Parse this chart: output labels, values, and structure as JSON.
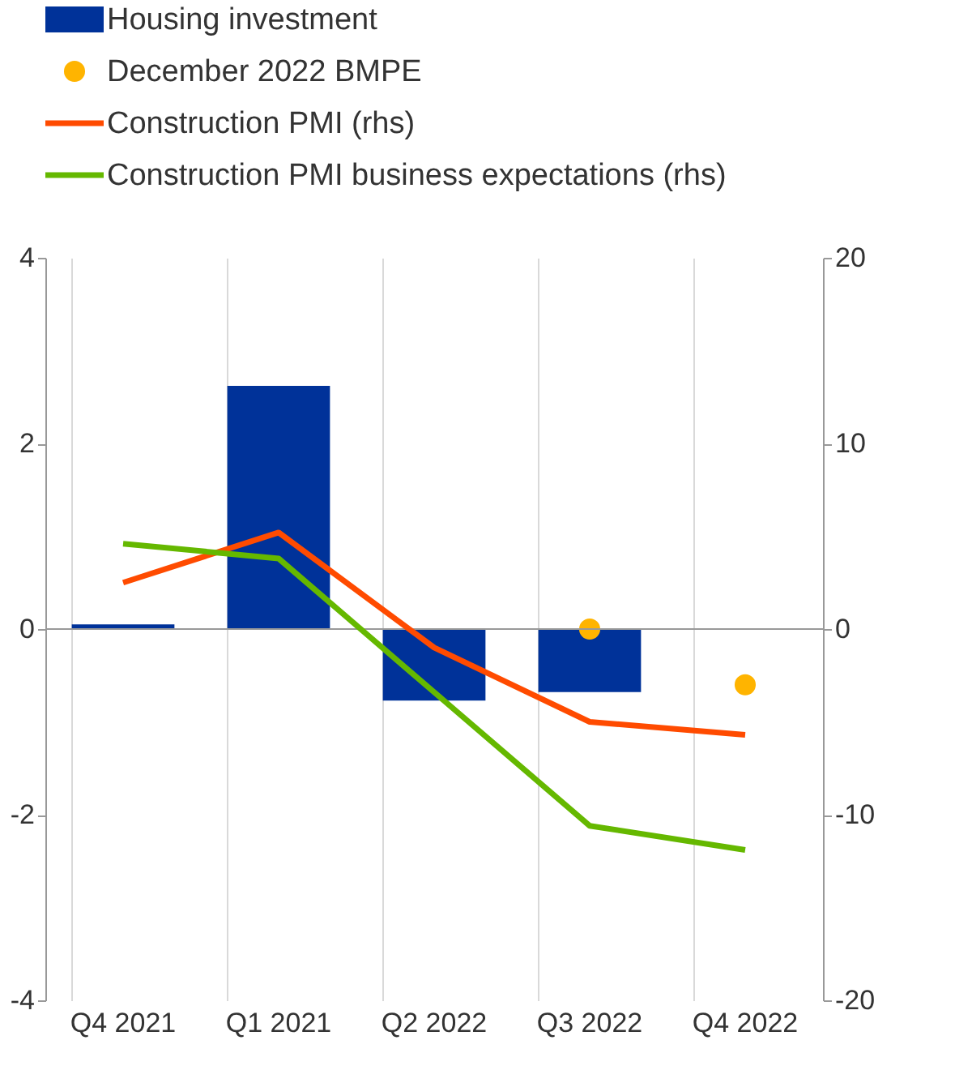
{
  "chart_data": {
    "type": "bar",
    "categories": [
      "Q4 2021",
      "Q1 2021",
      "Q2 2022",
      "Q3 2022",
      "Q4 2022"
    ],
    "series": [
      {
        "name": "Housing investment",
        "color": "#003299",
        "values": [
          0.05,
          2.62,
          -0.77,
          -0.68,
          null
        ]
      },
      {
        "name": "December 2022 BMPE",
        "type": "scatter",
        "color": "#ffb400",
        "marker": "circle",
        "values": [
          null,
          null,
          null,
          0.0,
          -0.6
        ]
      },
      {
        "name": "Construction PMI (rhs)",
        "type": "line",
        "axis": "y2",
        "color": "#ff4b00",
        "values": [
          2.5,
          5.2,
          -1.0,
          -5.0,
          -5.7
        ]
      },
      {
        "name": "Construction PMI business expectations (rhs)",
        "type": "line",
        "axis": "y2",
        "color": "#65b800",
        "values": [
          4.6,
          3.8,
          -3.4,
          -10.6,
          -11.9
        ]
      }
    ],
    "ylim": [
      -4,
      4
    ],
    "yticks": [
      -4,
      -2,
      0,
      2,
      4
    ],
    "y2lim": [
      -20,
      20
    ],
    "y2ticks": [
      -20,
      -10,
      0,
      10,
      20
    ],
    "grid": "x",
    "legend": "top",
    "ref_lines": [
      {
        "axis": "y",
        "value": 0
      }
    ]
  }
}
